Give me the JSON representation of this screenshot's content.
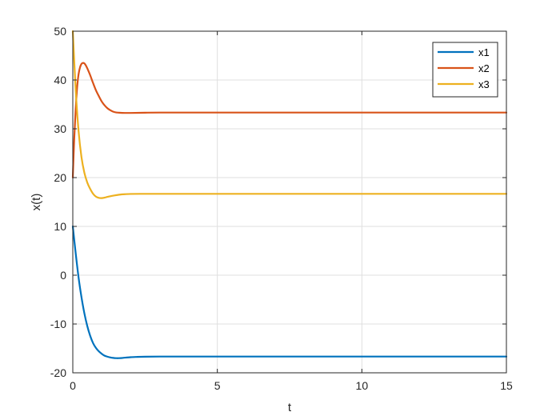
{
  "chart_data": {
    "type": "line",
    "xlabel": "t",
    "ylabel": "x(t)",
    "xlim": [
      0,
      15
    ],
    "ylim": [
      -20,
      50
    ],
    "xticks": [
      0,
      5,
      10,
      15
    ],
    "yticks": [
      -20,
      -10,
      0,
      10,
      20,
      30,
      40,
      50
    ],
    "grid": true,
    "legend_position": "top-right",
    "series": [
      {
        "name": "x1",
        "color": "#0072BD",
        "x": [
          0,
          0.1,
          0.2,
          0.3,
          0.4,
          0.5,
          0.6,
          0.7,
          0.8,
          0.9,
          1.0,
          1.1,
          1.2,
          1.3,
          1.4,
          1.5,
          1.6,
          1.7,
          1.8,
          2.0,
          2.2,
          2.5,
          3.0,
          4.0,
          6.0,
          8.0,
          10.0,
          12.0,
          15.0
        ],
        "values": [
          10,
          4.5,
          -0.5,
          -4.5,
          -7.8,
          -10.4,
          -12.4,
          -13.9,
          -14.9,
          -15.6,
          -16.1,
          -16.5,
          -16.7,
          -16.85,
          -16.95,
          -17.0,
          -17.0,
          -16.97,
          -16.9,
          -16.8,
          -16.75,
          -16.7,
          -16.67,
          -16.67,
          -16.67,
          -16.67,
          -16.67,
          -16.67,
          -16.67
        ]
      },
      {
        "name": "x2",
        "color": "#D95319",
        "x": [
          0,
          0.05,
          0.1,
          0.15,
          0.2,
          0.25,
          0.3,
          0.35,
          0.4,
          0.45,
          0.5,
          0.6,
          0.7,
          0.8,
          0.9,
          1.0,
          1.1,
          1.2,
          1.3,
          1.4,
          1.5,
          1.6,
          1.8,
          2.0,
          2.5,
          3.0,
          4.0,
          6.0,
          8.0,
          10.0,
          12.0,
          15.0
        ],
        "values": [
          20,
          28,
          34,
          38.5,
          41.2,
          42.6,
          43.3,
          43.5,
          43.4,
          43.0,
          42.4,
          41.0,
          39.4,
          37.9,
          36.7,
          35.6,
          34.8,
          34.2,
          33.8,
          33.5,
          33.35,
          33.3,
          33.25,
          33.25,
          33.3,
          33.33,
          33.33,
          33.33,
          33.33,
          33.33,
          33.33,
          33.33
        ]
      },
      {
        "name": "x3",
        "color": "#EDB120",
        "x": [
          0,
          0.1,
          0.2,
          0.3,
          0.4,
          0.5,
          0.6,
          0.7,
          0.8,
          0.9,
          1.0,
          1.1,
          1.2,
          1.4,
          1.6,
          1.8,
          2.0,
          2.5,
          3.0,
          4.0,
          6.0,
          8.0,
          10.0,
          12.0,
          15.0
        ],
        "values": [
          50,
          38,
          29.5,
          24.2,
          21.0,
          19.0,
          17.7,
          16.7,
          16.1,
          15.85,
          15.8,
          15.9,
          16.05,
          16.3,
          16.5,
          16.6,
          16.65,
          16.67,
          16.67,
          16.67,
          16.67,
          16.67,
          16.67,
          16.67,
          16.67
        ]
      }
    ]
  }
}
